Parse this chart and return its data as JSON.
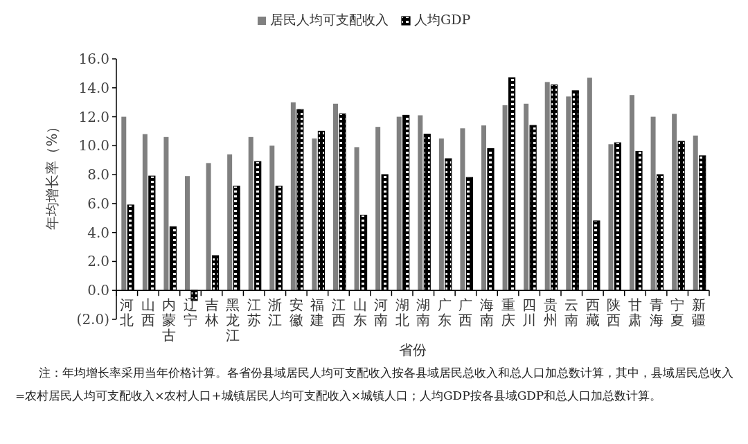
{
  "chart_data": {
    "type": "bar",
    "xlabel": "省份",
    "ylabel": "年均增长率（%）",
    "legend": "top",
    "categories": [
      "河北",
      "山西",
      "内蒙古",
      "辽宁",
      "吉林",
      "黑龙江",
      "江苏",
      "浙江",
      "安徽",
      "福建",
      "江西",
      "山东",
      "河南",
      "湖北",
      "湖南",
      "广东",
      "广西",
      "海南",
      "重庆",
      "四川",
      "贵州",
      "云南",
      "西藏",
      "陕西",
      "甘肃",
      "青海",
      "宁夏",
      "新疆"
    ],
    "series": [
      {
        "name": "居民人均可支配收入",
        "color": "#808080",
        "values": [
          12.0,
          10.8,
          10.6,
          7.9,
          8.8,
          9.4,
          10.6,
          10.0,
          13.0,
          10.5,
          12.9,
          9.9,
          11.3,
          12.0,
          12.1,
          10.5,
          11.2,
          11.4,
          12.8,
          12.9,
          14.4,
          13.4,
          14.7,
          10.1,
          13.5,
          12.0,
          12.2,
          10.7
        ]
      },
      {
        "name": "人均GDP",
        "color": "#000000",
        "values": [
          5.9,
          7.9,
          4.4,
          -0.7,
          2.4,
          7.2,
          8.9,
          7.2,
          12.5,
          11.0,
          12.2,
          5.2,
          8.0,
          12.1,
          10.8,
          9.1,
          7.8,
          9.8,
          14.7,
          11.4,
          14.2,
          13.8,
          4.8,
          10.2,
          9.6,
          8.0,
          10.3,
          9.3
        ]
      }
    ],
    "ylim": [
      -2,
      16
    ],
    "yticks": [
      {
        "value": -2,
        "label": "(2.0)"
      },
      {
        "value": 0,
        "label": "0.0"
      },
      {
        "value": 2,
        "label": "2.0"
      },
      {
        "value": 4,
        "label": "4.0"
      },
      {
        "value": 6,
        "label": "6.0"
      },
      {
        "value": 8,
        "label": "8.0"
      },
      {
        "value": 10,
        "label": "10.0"
      },
      {
        "value": 12,
        "label": "12.0"
      },
      {
        "value": 14,
        "label": "14.0"
      },
      {
        "value": 16,
        "label": "16.0"
      }
    ],
    "grid": false,
    "annotations": [
      "注：年均增长率采用当年价格计算。各省份县域居民人均可支配收入按各县域居民总收入和总人口加总数计算，其中，县域居民总收入=农村居民人均可支配收入×农村人口+城镇居民人均可支配收入×城镇人口；人均GDP按各县域GDP和总人口加总数计算。"
    ]
  }
}
